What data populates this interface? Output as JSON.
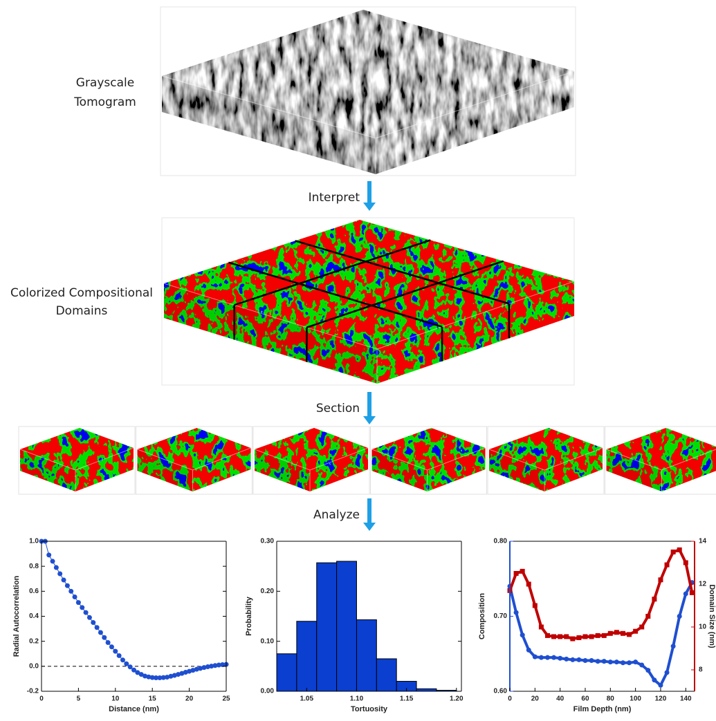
{
  "labels": {
    "tomogram": [
      "Grayscale",
      "Tomogram"
    ],
    "interpret": "Interpret",
    "domains": [
      "Colorized Compositional",
      "Domains"
    ],
    "section": "Section",
    "analyze": "Analyze"
  },
  "chart_data": [
    {
      "type": "line",
      "xlabel": "Distance (nm)",
      "ylabel": "Radial Autocorrelation",
      "color": "#1f4fd0",
      "x": [
        0,
        0.5,
        1,
        1.5,
        2,
        2.5,
        3,
        3.5,
        4,
        4.5,
        5,
        5.5,
        6,
        6.5,
        7,
        7.5,
        8,
        8.5,
        9,
        9.5,
        10,
        10.5,
        11,
        11.5,
        12,
        12.5,
        13,
        13.5,
        14,
        14.5,
        15,
        15.5,
        16,
        16.5,
        17,
        17.5,
        18,
        18.5,
        19,
        19.5,
        20,
        20.5,
        21,
        21.5,
        22,
        22.5,
        23,
        23.5,
        24,
        24.5,
        25
      ],
      "values": [
        1.0,
        1.0,
        0.89,
        0.84,
        0.79,
        0.74,
        0.69,
        0.645,
        0.6,
        0.555,
        0.51,
        0.47,
        0.43,
        0.39,
        0.35,
        0.31,
        0.27,
        0.23,
        0.19,
        0.155,
        0.12,
        0.085,
        0.05,
        0.02,
        -0.005,
        -0.03,
        -0.05,
        -0.065,
        -0.078,
        -0.085,
        -0.09,
        -0.092,
        -0.092,
        -0.09,
        -0.087,
        -0.08,
        -0.073,
        -0.065,
        -0.057,
        -0.048,
        -0.04,
        -0.032,
        -0.024,
        -0.017,
        -0.01,
        -0.004,
        0.001,
        0.006,
        0.01,
        0.013,
        0.015
      ],
      "hline": 0,
      "xlim": [
        0,
        25
      ],
      "xticks": [
        0,
        5,
        10,
        15,
        20,
        25
      ],
      "ylim": [
        -0.2,
        1.0
      ],
      "yticks": [
        {
          "value": -0.2,
          "label": "-0.2"
        },
        {
          "value": 0,
          "label": "0.0"
        },
        0.2,
        0.4,
        0.6,
        0.8,
        {
          "value": 1,
          "label": "1.0"
        }
      ]
    },
    {
      "type": "histogram",
      "xlabel": "Tortuosity",
      "ylabel": "Probability",
      "color": "#0a3fd0",
      "bins": [
        1.02,
        1.04,
        1.06,
        1.08,
        1.1,
        1.12,
        1.14,
        1.16,
        1.18,
        1.2
      ],
      "values": [
        0.075,
        0.14,
        0.257,
        0.26,
        0.143,
        0.065,
        0.02,
        0.005,
        0.002
      ],
      "xlim": [
        1.02,
        1.205
      ],
      "xticks": [
        1.05,
        {
          "value": 1.1,
          "label": "1.10"
        },
        1.15,
        {
          "value": 1.2,
          "label": "1.20"
        }
      ],
      "ylim": [
        0,
        0.3
      ],
      "yticks": [
        {
          "value": 0,
          "label": "0.00"
        },
        {
          "value": 0.1,
          "label": "0.10"
        },
        {
          "value": 0.2,
          "label": "0.20"
        },
        {
          "value": 0.3,
          "label": "0.30"
        }
      ]
    },
    {
      "type": "line",
      "xlabel": "Film Depth (nm)",
      "ylabel": "Composition",
      "y2label": "Domain Size (nm)",
      "x": [
        0,
        5,
        10,
        15,
        20,
        25,
        30,
        35,
        40,
        45,
        50,
        55,
        60,
        65,
        70,
        75,
        80,
        85,
        90,
        95,
        100,
        105,
        110,
        115,
        120,
        125,
        130,
        135,
        140,
        145
      ],
      "series": [
        {
          "color": "#1f4fd0",
          "values": [
            0.74,
            0.705,
            0.675,
            0.655,
            0.646,
            0.645,
            0.645,
            0.645,
            0.644,
            0.643,
            0.642,
            0.642,
            0.641,
            0.641,
            0.64,
            0.64,
            0.639,
            0.639,
            0.638,
            0.638,
            0.639,
            0.635,
            0.628,
            0.615,
            0.608,
            0.625,
            0.66,
            0.7,
            0.73,
            0.745
          ]
        },
        {
          "color": "#c00000",
          "axis": "y2",
          "values": [
            11.7,
            12.5,
            12.6,
            12.0,
            11.0,
            10.0,
            9.6,
            9.55,
            9.55,
            9.55,
            9.45,
            9.5,
            9.55,
            9.55,
            9.6,
            9.6,
            9.7,
            9.75,
            9.7,
            9.65,
            9.8,
            10.0,
            10.5,
            11.3,
            12.2,
            12.9,
            13.5,
            13.6,
            13.0,
            11.6
          ]
        }
      ],
      "xlim": [
        0,
        147
      ],
      "xticks": [
        0,
        20,
        40,
        60,
        80,
        100,
        120,
        140
      ],
      "ylim": [
        0.6,
        0.8
      ],
      "yticks": [
        {
          "value": 0.6,
          "label": "0.60"
        },
        {
          "value": 0.7,
          "label": "0.70"
        },
        {
          "value": 0.8,
          "label": "0.80"
        }
      ],
      "y2lim": [
        7,
        14
      ],
      "y2ticks": [
        8,
        10,
        12,
        14
      ]
    }
  ]
}
